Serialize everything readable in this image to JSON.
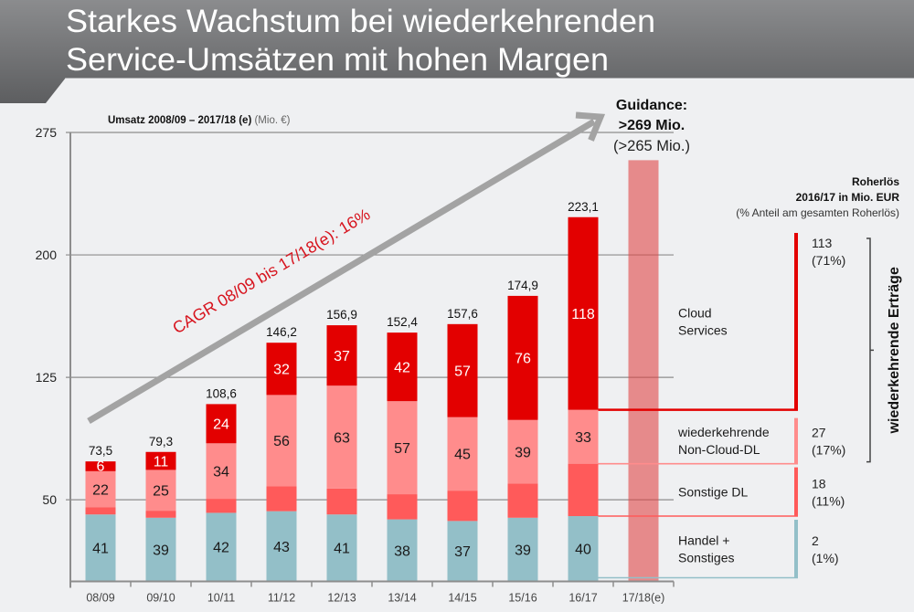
{
  "header": {
    "title_line1": "Starkes Wachstum bei wiederkehrenden",
    "title_line2": "Service-Umsätzen mit hohen Margen"
  },
  "chart_data": {
    "type": "bar",
    "stacked": true,
    "title": "Umsatz 2008/09 – 2017/18 (e)",
    "title_unit": " (Mio. €)",
    "xlabel": "",
    "ylabel": "",
    "ylim": [
      0,
      275
    ],
    "yticks": [
      50,
      125,
      200,
      275
    ],
    "grid": true,
    "categories": [
      "08/09",
      "09/10",
      "10/11",
      "11/12",
      "12/13",
      "13/14",
      "14/15",
      "15/16",
      "16/17",
      "17/18(e)"
    ],
    "series": [
      {
        "name": "Handel + Sonstiges",
        "color": "#93bfc8",
        "label_color": "#1a1a1a",
        "show_labels": true,
        "values": [
          41,
          39,
          42,
          43,
          41,
          38,
          37,
          39,
          40,
          null
        ]
      },
      {
        "name": "Sonstige DL",
        "color": "#ff5a5a",
        "label_color": "#1a1a1a",
        "show_labels": false,
        "values": [
          4.5,
          4.3,
          8.6,
          15.2,
          15.9,
          15.4,
          18.6,
          20.9,
          32.1,
          null
        ]
      },
      {
        "name": "wiederkehrende Non-Cloud-DL",
        "color": "#ff8c8c",
        "label_color": "#1a1a1a",
        "show_labels": true,
        "values": [
          22,
          25,
          34,
          56,
          63,
          57,
          45,
          39,
          33,
          null
        ]
      },
      {
        "name": "Cloud Services",
        "color": "#e30000",
        "label_color": "#ffffff",
        "show_labels": true,
        "values": [
          6,
          11,
          24,
          32,
          37,
          42,
          57,
          76,
          118,
          null
        ]
      }
    ],
    "totals": [
      73.5,
      79.3,
      108.6,
      146.2,
      156.9,
      152.4,
      157.6,
      174.9,
      223.1,
      null
    ],
    "total_labels": [
      "73,5",
      "79,3",
      "108,6",
      "146,2",
      "156,9",
      "152,4",
      "157,6",
      "174,9",
      "223,1",
      null
    ],
    "guidance": {
      "category": "17/18(e)",
      "guidance_value": 269,
      "plotted_value": 258,
      "color": "#e04646",
      "label_title": "Guidance:",
      "label_value": ">269 Mio.",
      "label_previous": "(>265 Mio.)"
    },
    "trend_annotation": "CAGR 08/09 bis 17/18(e): 16%",
    "legend_source_category": "16/17"
  },
  "legend": {
    "heading_line1": "Roherlös",
    "heading_line2": "2016/17 in Mio. EUR",
    "heading_line3": "(% Anteil am gesamten Roherlös)",
    "items": [
      {
        "series_index": 3,
        "label_lines": [
          "Cloud",
          "Services"
        ],
        "value": "113",
        "share": "(71%)"
      },
      {
        "series_index": 2,
        "label_lines": [
          "wiederkehrende",
          "Non-Cloud-DL"
        ],
        "value": "27",
        "share": "(17%)"
      },
      {
        "series_index": 1,
        "label_lines": [
          "Sonstige DL"
        ],
        "value": "18",
        "share": "(11%)"
      },
      {
        "series_index": 0,
        "label_lines": [
          "Handel +",
          "Sonstiges"
        ],
        "value": "2",
        "share": "(1%)"
      }
    ],
    "bracket_label": "wiederkehrende Erträge"
  }
}
